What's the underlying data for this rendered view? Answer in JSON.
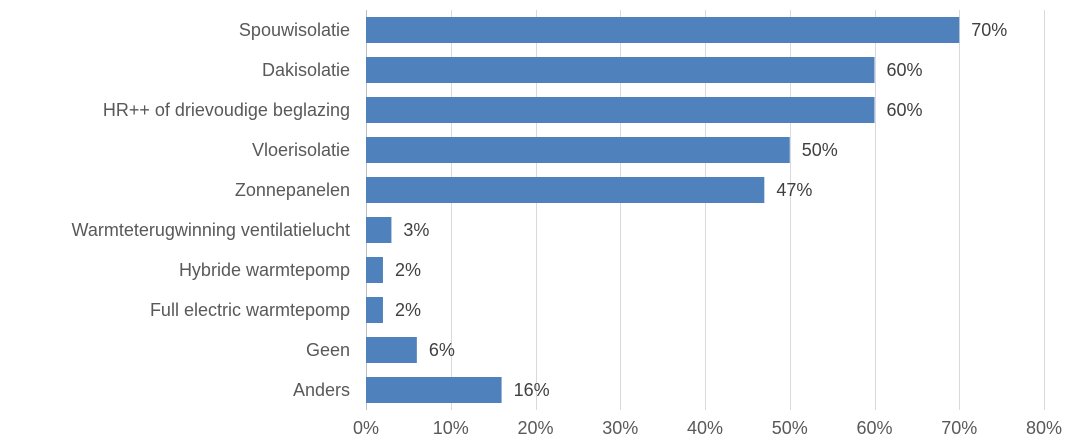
{
  "chart_data": {
    "type": "bar",
    "orientation": "horizontal",
    "title": "",
    "xlabel": "",
    "ylabel": "",
    "categories": [
      "Spouwisolatie",
      "Dakisolatie",
      "HR++ of drievoudige beglazing",
      "Vloerisolatie",
      "Zonnepanelen",
      "Warmteterugwinning ventilatielucht",
      "Hybride warmtepomp",
      "Full electric warmtepomp",
      "Geen",
      "Anders"
    ],
    "values": [
      70,
      60,
      60,
      50,
      47,
      3,
      2,
      2,
      6,
      16
    ],
    "data_labels": [
      "70%",
      "60%",
      "60%",
      "50%",
      "47%",
      "3%",
      "2%",
      "2%",
      "6%",
      "16%"
    ],
    "xlim": [
      0,
      80
    ],
    "x_ticks": [
      0,
      10,
      20,
      30,
      40,
      50,
      60,
      70,
      80
    ],
    "x_tick_labels": [
      "0%",
      "10%",
      "20%",
      "30%",
      "40%",
      "50%",
      "60%",
      "70%",
      "80%"
    ],
    "grid": true,
    "legend": "none",
    "bar_color": "#4f81bd"
  }
}
